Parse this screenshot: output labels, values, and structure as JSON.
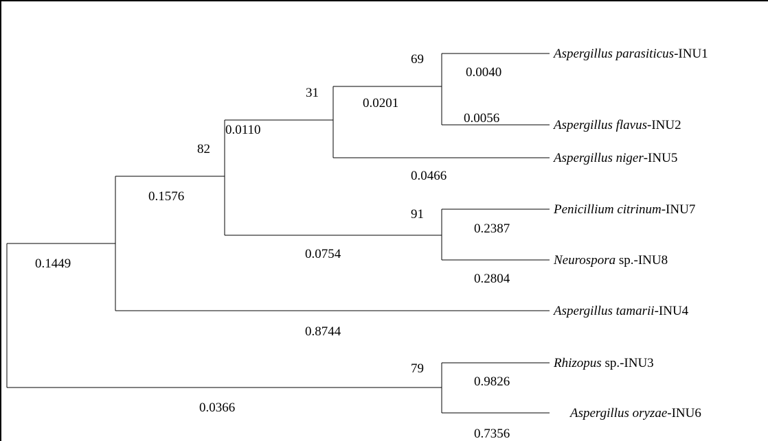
{
  "tree": {
    "taxa": [
      {
        "id": "t1",
        "genus": "Aspergillus parasiticus",
        "suffix": "-INU1"
      },
      {
        "id": "t2",
        "genus": "Aspergillus flavus",
        "suffix": "-INU2"
      },
      {
        "id": "t3",
        "genus": "Aspergillus niger",
        "suffix": "-INU5"
      },
      {
        "id": "t4",
        "genus": "Penicillium citrinum",
        "suffix": "-INU7"
      },
      {
        "id": "t5",
        "genus": "Neurospora",
        "suffix": " sp.-INU8"
      },
      {
        "id": "t6",
        "genus": "Aspergillus tamarii",
        "suffix": "-INU4"
      },
      {
        "id": "t7",
        "genus": "Rhizopus",
        "suffix": " sp.-INU3"
      },
      {
        "id": "t8",
        "genus": "Aspergillus oryzae",
        "suffix": "-INU6"
      }
    ],
    "bootstrap": {
      "n_par_flav": "69",
      "n_A": "31",
      "n_D": "82",
      "n_pen_neu": "91",
      "n_rhi_ory": "79"
    },
    "branch_lengths": {
      "par": "0.0040",
      "flav": "0.0056",
      "n_par_flav": "0.0201",
      "n_A": "0.0110",
      "niger": "0.0466",
      "n_D": "0.1576",
      "pen": "0.2387",
      "neu": "0.2804",
      "n_pen_neu": "0.0754",
      "tam": "0.8744",
      "root_top": "0.1449",
      "rhi": "0.9826",
      "ory": "0.7356",
      "root_bottom": "0.0366"
    }
  }
}
